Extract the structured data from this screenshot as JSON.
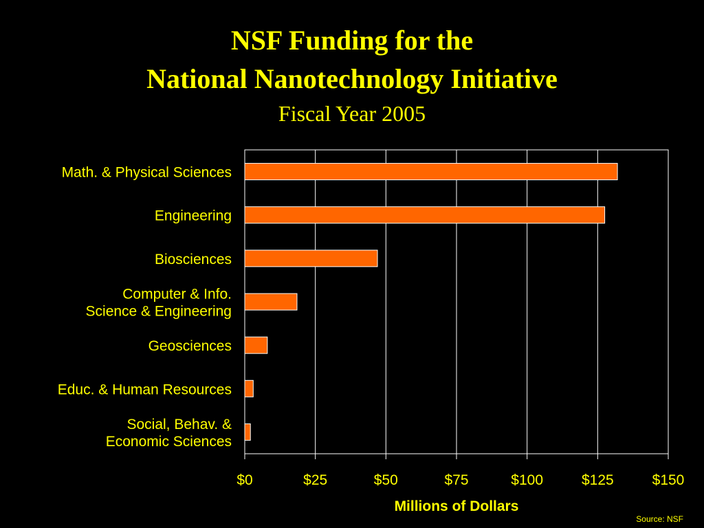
{
  "header": {
    "title_line1": "NSF Funding for the",
    "title_line2": "National Nanotechnology Initiative",
    "subtitle": "Fiscal Year 2005"
  },
  "footer": {
    "source": "Source: NSF"
  },
  "chart_data": {
    "type": "bar",
    "orientation": "horizontal",
    "title": "NSF Funding for the National Nanotechnology Initiative",
    "subtitle": "Fiscal Year 2005",
    "xlabel": "Millions of Dollars",
    "ylabel": "",
    "categories": [
      [
        "Math. & Physical Sciences"
      ],
      [
        "Engineering"
      ],
      [
        "Biosciences"
      ],
      [
        "Computer & Info.",
        "Science & Engineering"
      ],
      [
        "Geosciences"
      ],
      [
        "Educ. & Human Resources"
      ],
      [
        "Social, Behav. &",
        "Economic Sciences"
      ]
    ],
    "values": [
      132,
      127.5,
      47,
      18.5,
      8,
      3,
      2
    ],
    "xlim": [
      0,
      150
    ],
    "x_ticks": [
      0,
      25,
      50,
      75,
      100,
      125,
      150
    ],
    "x_tick_labels": [
      "$0",
      "$25",
      "$50",
      "$75",
      "$100",
      "$125",
      "$150"
    ],
    "grid": true,
    "legend": "none",
    "colors": {
      "bar": "#FF6600",
      "bar_border": "#FFFFFF",
      "grid": "#FFFFFF",
      "label": "#FFFF00",
      "background": "#000000"
    }
  }
}
